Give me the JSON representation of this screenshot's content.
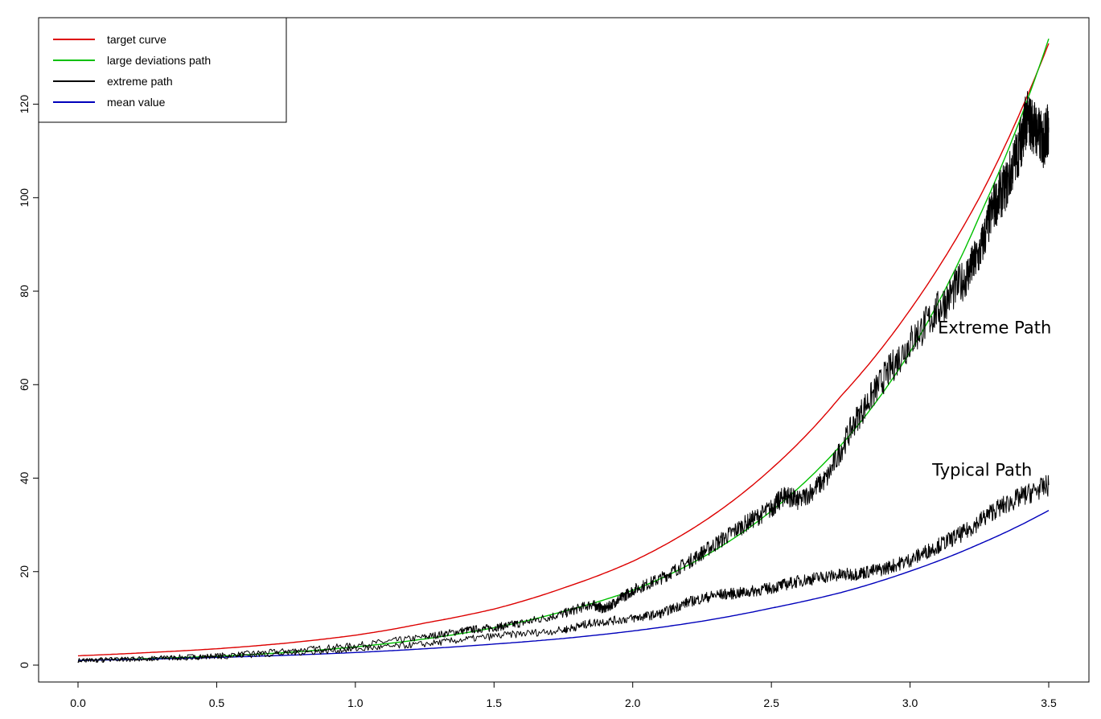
{
  "chart_data": {
    "type": "line",
    "title": "",
    "xlabel": "",
    "ylabel": "",
    "xlim": [
      0,
      3.5
    ],
    "ylim": [
      0,
      130
    ],
    "x_ticks": [
      "0.0",
      "0.5",
      "1.0",
      "1.5",
      "2.0",
      "2.5",
      "3.0",
      "3.5"
    ],
    "y_ticks": [
      "0",
      "20",
      "40",
      "60",
      "80",
      "100",
      "120"
    ],
    "grid": false,
    "legend_position": "top-left",
    "legend": [
      {
        "label": "target curve",
        "color": "#dd0000"
      },
      {
        "label": "large deviations path",
        "color": "#00c000"
      },
      {
        "label": "extreme path",
        "color": "#000000"
      },
      {
        "label": "mean value",
        "color": "#0000bb"
      }
    ],
    "annotations": [
      {
        "text": "Extreme Path",
        "x": 3.1,
        "y": 71
      },
      {
        "text": "Typical Path",
        "x": 3.08,
        "y": 40.5
      }
    ],
    "series": [
      {
        "name": "target curve",
        "color": "#dd0000",
        "x": [
          0.0,
          0.25,
          0.5,
          0.75,
          1.0,
          1.25,
          1.5,
          1.75,
          2.0,
          2.25,
          2.5,
          2.75,
          3.0,
          3.25,
          3.5
        ],
        "y": [
          2.0,
          2.68,
          3.5,
          4.7,
          6.4,
          9.0,
          12.0,
          16.5,
          22.2,
          30.5,
          42.0,
          57.5,
          76.0,
          100.0,
          133.0
        ]
      },
      {
        "name": "large deviations path",
        "color": "#00c000",
        "x": [
          0.0,
          0.25,
          0.5,
          0.75,
          1.0,
          1.25,
          1.5,
          1.75,
          2.0,
          2.25,
          2.5,
          2.75,
          3.0,
          3.25,
          3.5
        ],
        "y": [
          1.0,
          1.4,
          1.9,
          2.7,
          3.9,
          5.6,
          8.0,
          11.5,
          16.0,
          23.0,
          33.0,
          47.0,
          67.0,
          96.0,
          134.0
        ]
      },
      {
        "name": "mean value",
        "color": "#0000bb",
        "x": [
          0.0,
          0.25,
          0.5,
          0.75,
          1.0,
          1.25,
          1.5,
          1.75,
          2.0,
          2.25,
          2.5,
          2.75,
          3.0,
          3.25,
          3.5
        ],
        "y": [
          1.0,
          1.28,
          1.65,
          2.1,
          2.7,
          3.5,
          4.5,
          5.7,
          7.3,
          9.4,
          12.2,
          15.5,
          20.1,
          25.9,
          33.1
        ]
      },
      {
        "name": "extreme path",
        "color": "#000000",
        "x": [
          0.0,
          0.25,
          0.5,
          0.75,
          1.0,
          1.25,
          1.4,
          1.5,
          1.6,
          1.75,
          1.85,
          1.9,
          1.95,
          2.0,
          2.1,
          2.2,
          2.3,
          2.4,
          2.5,
          2.55,
          2.6,
          2.7,
          2.8,
          2.9,
          3.0,
          3.1,
          3.2,
          3.25,
          3.3,
          3.35,
          3.4,
          3.42,
          3.45,
          3.48,
          3.5
        ],
        "y": [
          1.0,
          1.4,
          2.0,
          3.0,
          4.2,
          6.0,
          7.5,
          8.0,
          9.0,
          11.0,
          13.0,
          12.0,
          14.0,
          16.0,
          18.5,
          22.0,
          26.0,
          30.0,
          33.5,
          36.5,
          35.0,
          40.0,
          52.0,
          61.0,
          69.0,
          76.0,
          83.0,
          88.0,
          98.0,
          103.0,
          112.0,
          117.0,
          115.0,
          112.0,
          115.0
        ]
      },
      {
        "name": "typical path",
        "color": "#000000",
        "x": [
          0.0,
          0.25,
          0.5,
          0.75,
          1.0,
          1.25,
          1.5,
          1.75,
          1.85,
          2.0,
          2.1,
          2.2,
          2.3,
          2.4,
          2.5,
          2.6,
          2.7,
          2.8,
          2.9,
          3.0,
          3.1,
          3.2,
          3.3,
          3.4,
          3.5
        ],
        "y": [
          1.0,
          1.3,
          1.8,
          2.5,
          3.4,
          4.5,
          6.2,
          7.5,
          9.0,
          10.0,
          11.0,
          13.5,
          15.0,
          15.5,
          16.5,
          18.0,
          19.0,
          19.5,
          20.5,
          22.5,
          25.5,
          28.5,
          33.0,
          36.0,
          38.5
        ]
      }
    ]
  }
}
